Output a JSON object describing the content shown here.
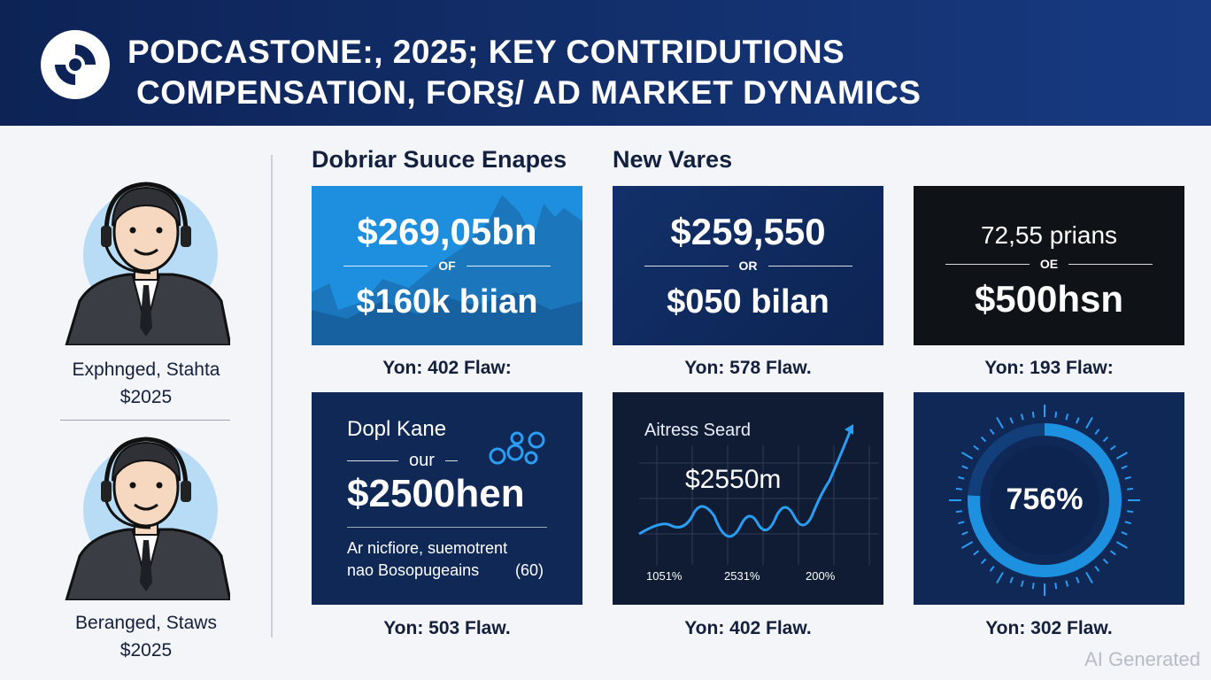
{
  "header": {
    "title_line1": "PODCASTONE:, 2025; KEY CONTRIDUTIONS",
    "title_line2": "COMPENSATION, FOR§/ AD MARKET DYNAMICS"
  },
  "left_panel": {
    "people": [
      {
        "name": "Exphnged, Stahta",
        "year": "$2025"
      },
      {
        "name": "Beranged, Staws",
        "year": "$2025"
      }
    ]
  },
  "sections": {
    "left_heading": "Dobriar Suuce Enapes",
    "right_heading": "New Vares"
  },
  "cards": {
    "card1": {
      "top_value": "$269,05bn",
      "separator": "OF",
      "bottom_value": "$160k biian",
      "caption": "Yon: 402 Flaw:"
    },
    "card2": {
      "top_value": "$259,550",
      "separator": "OR",
      "bottom_value": "$050 bilan",
      "caption": "Yon: 578 Flaw."
    },
    "card3": {
      "top_value": "72,55 prians",
      "separator": "OE",
      "bottom_value": "$500hsn",
      "caption": "Yon: 193 Flaw:"
    },
    "card4": {
      "title": "Dopl Kane",
      "separator": "our",
      "value": "$2500hen",
      "note_line1": "Ar nicfiore, suemotrent",
      "note_line2": "nao Bosopugeains",
      "note_badge": "(60)",
      "caption": "Yon: 503 Flaw."
    },
    "card5": {
      "title": "Aitress Seard",
      "value": "$2550m",
      "tick_labels": [
        "1051%",
        "2531%",
        "200%"
      ],
      "caption": "Yon: 402 Flaw."
    },
    "card6": {
      "value": "756%",
      "gauge_fraction": 0.76,
      "caption": "Yon: 302 Flaw."
    }
  },
  "colors": {
    "header_bg": "#0d2356",
    "accent_blue": "#1e90e0",
    "card_navy": "#0f2855",
    "card_black": "#0f1217",
    "card_sky": "#1e8fde"
  },
  "watermark": "AI Generated"
}
